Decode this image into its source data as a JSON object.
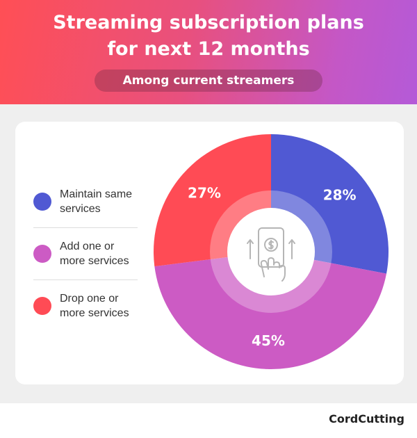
{
  "header": {
    "title_line1": "Streaming subscription plans",
    "title_line2": "for next 12 months",
    "subtitle": "Among current streamers"
  },
  "colors": {
    "maintain": "#5059d3",
    "add": "#cc5bc4",
    "drop": "#ff4b55"
  },
  "center_icon": "phone-dollar-hand-icon",
  "chart_data": {
    "type": "pie",
    "style": "donut",
    "categories": [
      "Maintain same services",
      "Add one or more services",
      "Drop one or more services"
    ],
    "values": [
      28,
      45,
      27
    ],
    "data_labels": [
      "28%",
      "45%",
      "27%"
    ],
    "legend": [
      {
        "line1": "Maintain same",
        "line2": "services",
        "color": "#5059d3"
      },
      {
        "line1": "Add one or",
        "line2": "more services",
        "color": "#cc5bc4"
      },
      {
        "line1": "Drop one or",
        "line2": "more services",
        "color": "#ff4b55"
      }
    ],
    "legend_position": "left"
  },
  "brand": "CordCutting"
}
